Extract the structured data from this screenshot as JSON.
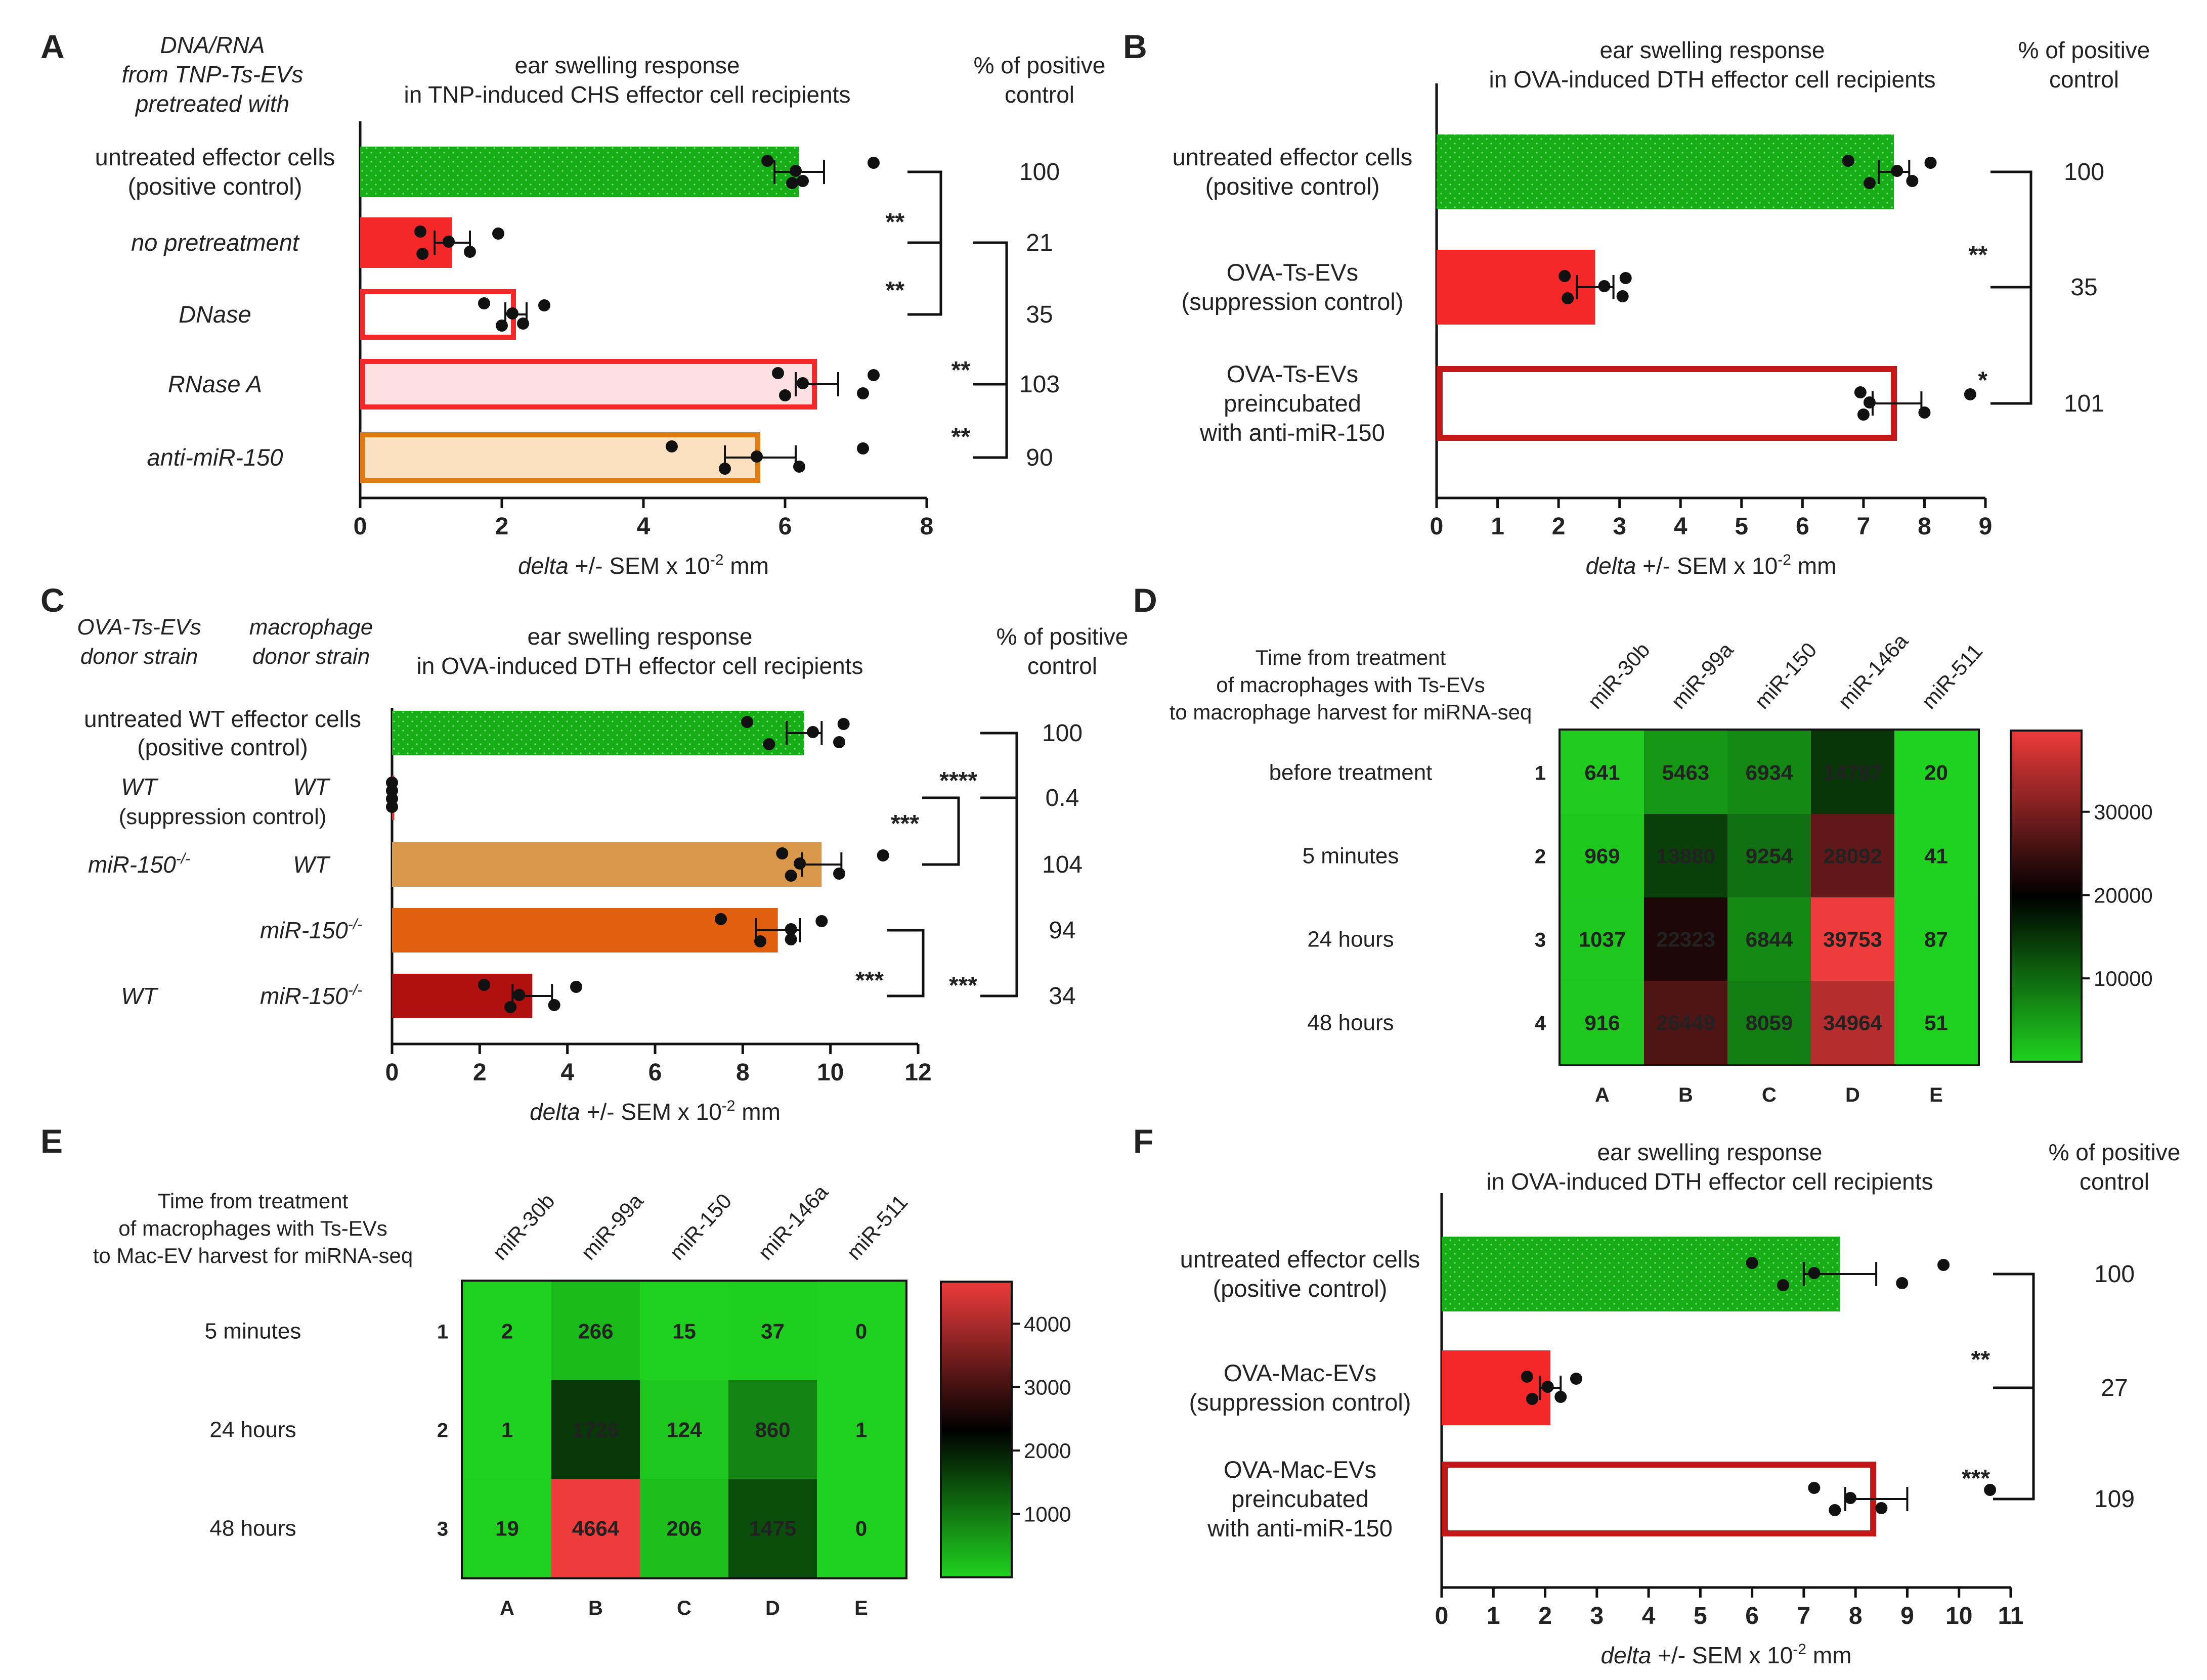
{
  "chart_data": [
    {
      "panel": "A",
      "type": "bar",
      "title_lines": [
        "ear swelling response",
        "in TNP-induced CHS effector cell recipients"
      ],
      "header_left_lines": [
        "DNA/RNA",
        "from TNP-Ts-EVs",
        "pretreated with"
      ],
      "pct_header_lines": [
        "% of positive",
        "control"
      ],
      "xlabel": {
        "pre": "delta +/- SEM x 10",
        "sup": "-2",
        "post": " mm"
      },
      "xlim": [
        0,
        8
      ],
      "xticks": [
        "0",
        "2",
        "4",
        "6",
        "8"
      ],
      "categories": [
        {
          "lines": [
            "untreated effector cells",
            "(positive control)"
          ],
          "label_colors": [
            "#222222",
            "#17a217"
          ],
          "italic": false,
          "value": 6.2,
          "sem": 0.35,
          "points": [
            5.75,
            6.1,
            6.15,
            6.25,
            7.25
          ],
          "pct": "100",
          "style": "greendots"
        },
        {
          "lines": [
            "no pretreatment"
          ],
          "italic": true,
          "value": 1.3,
          "sem": 0.25,
          "points": [
            0.85,
            0.88,
            1.25,
            1.55,
            1.95
          ],
          "pct": "21",
          "style": "red"
        },
        {
          "lines": [
            "DNase"
          ],
          "italic": true,
          "value": 2.2,
          "sem": 0.15,
          "points": [
            1.75,
            2.0,
            2.15,
            2.3,
            2.6
          ],
          "pct": "35",
          "style": "redoutline"
        },
        {
          "lines": [
            "RNase A"
          ],
          "italic": true,
          "value": 6.45,
          "sem": 0.3,
          "points": [
            5.9,
            6.0,
            6.25,
            7.1,
            7.25
          ],
          "pct": "103",
          "style": "pinkfill"
        },
        {
          "lines": [
            "anti-miR-150"
          ],
          "italic": true,
          "value": 5.65,
          "sem": 0.5,
          "points": [
            4.4,
            5.15,
            5.6,
            6.2,
            7.1
          ],
          "pct": "90",
          "style": "orangefill"
        }
      ],
      "significance": [
        {
          "from": 0,
          "to": 1,
          "label": "**"
        },
        {
          "from": 0,
          "to": 2,
          "label": "**"
        },
        {
          "from": 1,
          "to": 3,
          "label": "**"
        },
        {
          "from": 1,
          "to": 4,
          "label": "**"
        }
      ]
    },
    {
      "panel": "B",
      "type": "bar",
      "title_lines": [
        "ear swelling response",
        "in OVA-induced DTH effector cell recipients"
      ],
      "pct_header_lines": [
        "% of positive",
        "control"
      ],
      "xlabel": {
        "pre": "delta +/- SEM x 10",
        "sup": "-2",
        "post": " mm"
      },
      "xlim": [
        0,
        9
      ],
      "xticks": [
        "0",
        "1",
        "2",
        "3",
        "4",
        "5",
        "6",
        "7",
        "8",
        "9"
      ],
      "categories": [
        {
          "lines": [
            "untreated effector cells",
            "(positive control)"
          ],
          "label_colors": [
            "#222222",
            "#17a217"
          ],
          "value": 7.5,
          "sem": 0.25,
          "points": [
            6.75,
            7.1,
            7.55,
            7.8,
            8.1
          ],
          "pct": "100",
          "style": "greendots"
        },
        {
          "lines": [
            "OVA-Ts-EVs",
            "(suppression control)"
          ],
          "label_colors": [
            "#222222",
            "#ee2222"
          ],
          "value": 2.6,
          "sem": 0.3,
          "points": [
            2.1,
            2.15,
            2.75,
            3.05,
            3.1
          ],
          "pct": "35",
          "style": "red"
        },
        {
          "lines": [
            "OVA-Ts-EVs",
            "preincubated",
            "with anti-miR-150"
          ],
          "label_colors": [
            "#222222",
            "#222222",
            "#222222"
          ],
          "value": 7.55,
          "sem": 0.4,
          "points": [
            6.95,
            7.0,
            7.1,
            8.0,
            8.75
          ],
          "pct": "101",
          "style": "darkredoutline"
        }
      ],
      "significance": [
        {
          "from": 0,
          "to": 1,
          "label": "**"
        },
        {
          "from": 1,
          "to": 2,
          "label": "*"
        }
      ]
    },
    {
      "panel": "C",
      "type": "bar",
      "title_lines": [
        "ear swelling response",
        "in OVA-induced DTH effector cell recipients"
      ],
      "col_headers": [
        [
          "OVA-Ts-EVs",
          "donor strain"
        ],
        [
          "macrophage",
          "donor strain"
        ]
      ],
      "pct_header_lines": [
        "% of positive",
        "control"
      ],
      "xlabel": {
        "pre": "delta +/- SEM x 10",
        "sup": "-2",
        "post": " mm"
      },
      "xlim": [
        0,
        12
      ],
      "xticks": [
        "0",
        "2",
        "4",
        "6",
        "8",
        "10",
        "12"
      ],
      "categories": [
        {
          "center_lines": [
            "untreated WT effector cells",
            "(positive control)"
          ],
          "center_colors": [
            "#222222",
            "#17a217"
          ],
          "value": 9.4,
          "sem": 0.4,
          "points": [
            8.1,
            8.6,
            9.6,
            10.2,
            10.3
          ],
          "pct": "100",
          "style": "greendots"
        },
        {
          "left": "WT",
          "right": "WT",
          "sub": "(suppression control)",
          "sub_color": "#ee2222",
          "value": 0.05,
          "sem": 0,
          "points": [
            0.0,
            0.0,
            0.0,
            0.0
          ],
          "pct": "0.4",
          "style": "red"
        },
        {
          "left": "miR-150",
          "left_sup": "-/-",
          "right": "WT",
          "value": 9.8,
          "sem": 0.45,
          "points": [
            8.9,
            9.1,
            9.3,
            10.2,
            11.2
          ],
          "pct": "104",
          "style": "tan"
        },
        {
          "right": "miR-150",
          "right_sup": "-/-",
          "value": 8.8,
          "sem": 0.5,
          "points": [
            7.5,
            8.4,
            9.1,
            9.1,
            9.8
          ],
          "pct": "94",
          "style": "darkorange"
        },
        {
          "left": "WT",
          "right": "miR-150",
          "right_sup": "-/-",
          "value": 3.2,
          "sem": 0.45,
          "points": [
            2.1,
            2.7,
            2.9,
            3.7,
            4.2
          ],
          "pct": "34",
          "style": "crimson"
        }
      ],
      "significance": [
        {
          "from": 1,
          "to": 2,
          "label": "***"
        },
        {
          "from": 0,
          "to": 1,
          "label": "****"
        },
        {
          "from": 3,
          "to": 4,
          "label": "***"
        },
        {
          "from": 0,
          "to": 4,
          "label": "***"
        }
      ]
    },
    {
      "panel": "D",
      "type": "heatmap",
      "row_header_lines": [
        "Time from treatment",
        "of macrophages with Ts-EVs",
        "to macrophage harvest for miRNA-seq"
      ],
      "columns": [
        "miR-30b",
        "miR-99a",
        "miR-150",
        "miR-146a",
        "miR-511"
      ],
      "col_letters": [
        "A",
        "B",
        "C",
        "D",
        "E"
      ],
      "rows": [
        "before treatment",
        "5 minutes",
        "24 hours",
        "48 hours"
      ],
      "row_numbers": [
        "1",
        "2",
        "3",
        "4"
      ],
      "values": [
        [
          641,
          5463,
          6934,
          14787,
          20
        ],
        [
          969,
          13880,
          9254,
          28092,
          41
        ],
        [
          1037,
          22323,
          6844,
          39753,
          87
        ],
        [
          916,
          26449,
          8059,
          34964,
          51
        ]
      ],
      "scale_max": 39753,
      "colorbar_ticks": [
        {
          "value": 10000,
          "label": "10000"
        },
        {
          "value": 20000,
          "label": "20000"
        },
        {
          "value": 30000,
          "label": "30000"
        }
      ]
    },
    {
      "panel": "E",
      "type": "heatmap",
      "row_header_lines": [
        "Time from treatment",
        "of macrophages with Ts-EVs",
        "to Mac-EV harvest for miRNA-seq"
      ],
      "columns": [
        "miR-30b",
        "miR-99a",
        "miR-150",
        "miR-146a",
        "miR-511"
      ],
      "col_letters": [
        "A",
        "B",
        "C",
        "D",
        "E"
      ],
      "rows": [
        "5 minutes",
        "24 hours",
        "48 hours"
      ],
      "row_numbers": [
        "1",
        "2",
        "3"
      ],
      "values": [
        [
          2,
          266,
          15,
          37,
          0
        ],
        [
          1,
          1726,
          124,
          860,
          1
        ],
        [
          19,
          4664,
          206,
          1475,
          0
        ]
      ],
      "scale_max": 4664,
      "colorbar_ticks": [
        {
          "value": 1000,
          "label": "1000"
        },
        {
          "value": 2000,
          "label": "2000"
        },
        {
          "value": 3000,
          "label": "3000"
        },
        {
          "value": 4000,
          "label": "4000"
        }
      ]
    },
    {
      "panel": "F",
      "type": "bar",
      "title_lines": [
        "ear swelling response",
        "in OVA-induced DTH effector cell recipients"
      ],
      "pct_header_lines": [
        "% of positive",
        "control"
      ],
      "xlabel": {
        "pre": "delta +/- SEM x 10",
        "sup": "-2",
        "post": " mm"
      },
      "xlim": [
        0,
        11
      ],
      "xticks": [
        "0",
        "1",
        "2",
        "3",
        "4",
        "5",
        "6",
        "7",
        "8",
        "9",
        "10",
        "11"
      ],
      "categories": [
        {
          "lines": [
            "untreated effector cells",
            "(positive control)"
          ],
          "label_colors": [
            "#222222",
            "#17a217"
          ],
          "value": 7.7,
          "sem": 0.7,
          "points": [
            6.0,
            6.6,
            7.2,
            8.9,
            9.7
          ],
          "pct": "100",
          "style": "greendots"
        },
        {
          "lines": [
            "OVA-Mac-EVs",
            "(suppression control)"
          ],
          "label_colors": [
            "#222222",
            "#ee2222"
          ],
          "value": 2.1,
          "sem": 0.2,
          "points": [
            1.65,
            1.75,
            2.05,
            2.3,
            2.6
          ],
          "pct": "27",
          "style": "red"
        },
        {
          "lines": [
            "OVA-Mac-EVs",
            "preincubated",
            "with anti-miR-150"
          ],
          "label_colors": [
            "#222222",
            "#222222",
            "#222222"
          ],
          "value": 8.4,
          "sem": 0.6,
          "points": [
            7.2,
            7.6,
            7.9,
            8.5,
            10.6
          ],
          "pct": "109",
          "style": "darkredoutline"
        }
      ],
      "significance": [
        {
          "from": 0,
          "to": 1,
          "label": "**"
        },
        {
          "from": 1,
          "to": 2,
          "label": "***"
        }
      ]
    }
  ]
}
